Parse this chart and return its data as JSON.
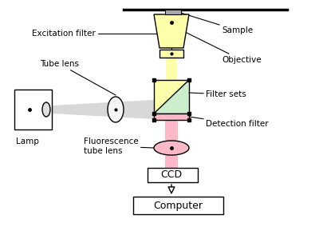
{
  "bg_color": "#ffffff",
  "line_color": "#000000",
  "yellow_color": "#ffffaa",
  "pink_color": "#ffb8c8",
  "gray_beam": "#d8d8d8",
  "green_color": "#cceecc",
  "labels": {
    "excitation_filter": "Excitation filter",
    "tube_lens": "Tube lens",
    "fluorescence_tube_lens": "Fluorescence\ntube lens",
    "lamp": "Lamp",
    "sample": "Sample",
    "objective": "Objective",
    "filter_sets": "Filter sets",
    "detection_filter": "Detection filter",
    "ccd": "CCD",
    "computer": "Computer"
  },
  "figsize": [
    4.0,
    3.09
  ],
  "dpi": 100
}
